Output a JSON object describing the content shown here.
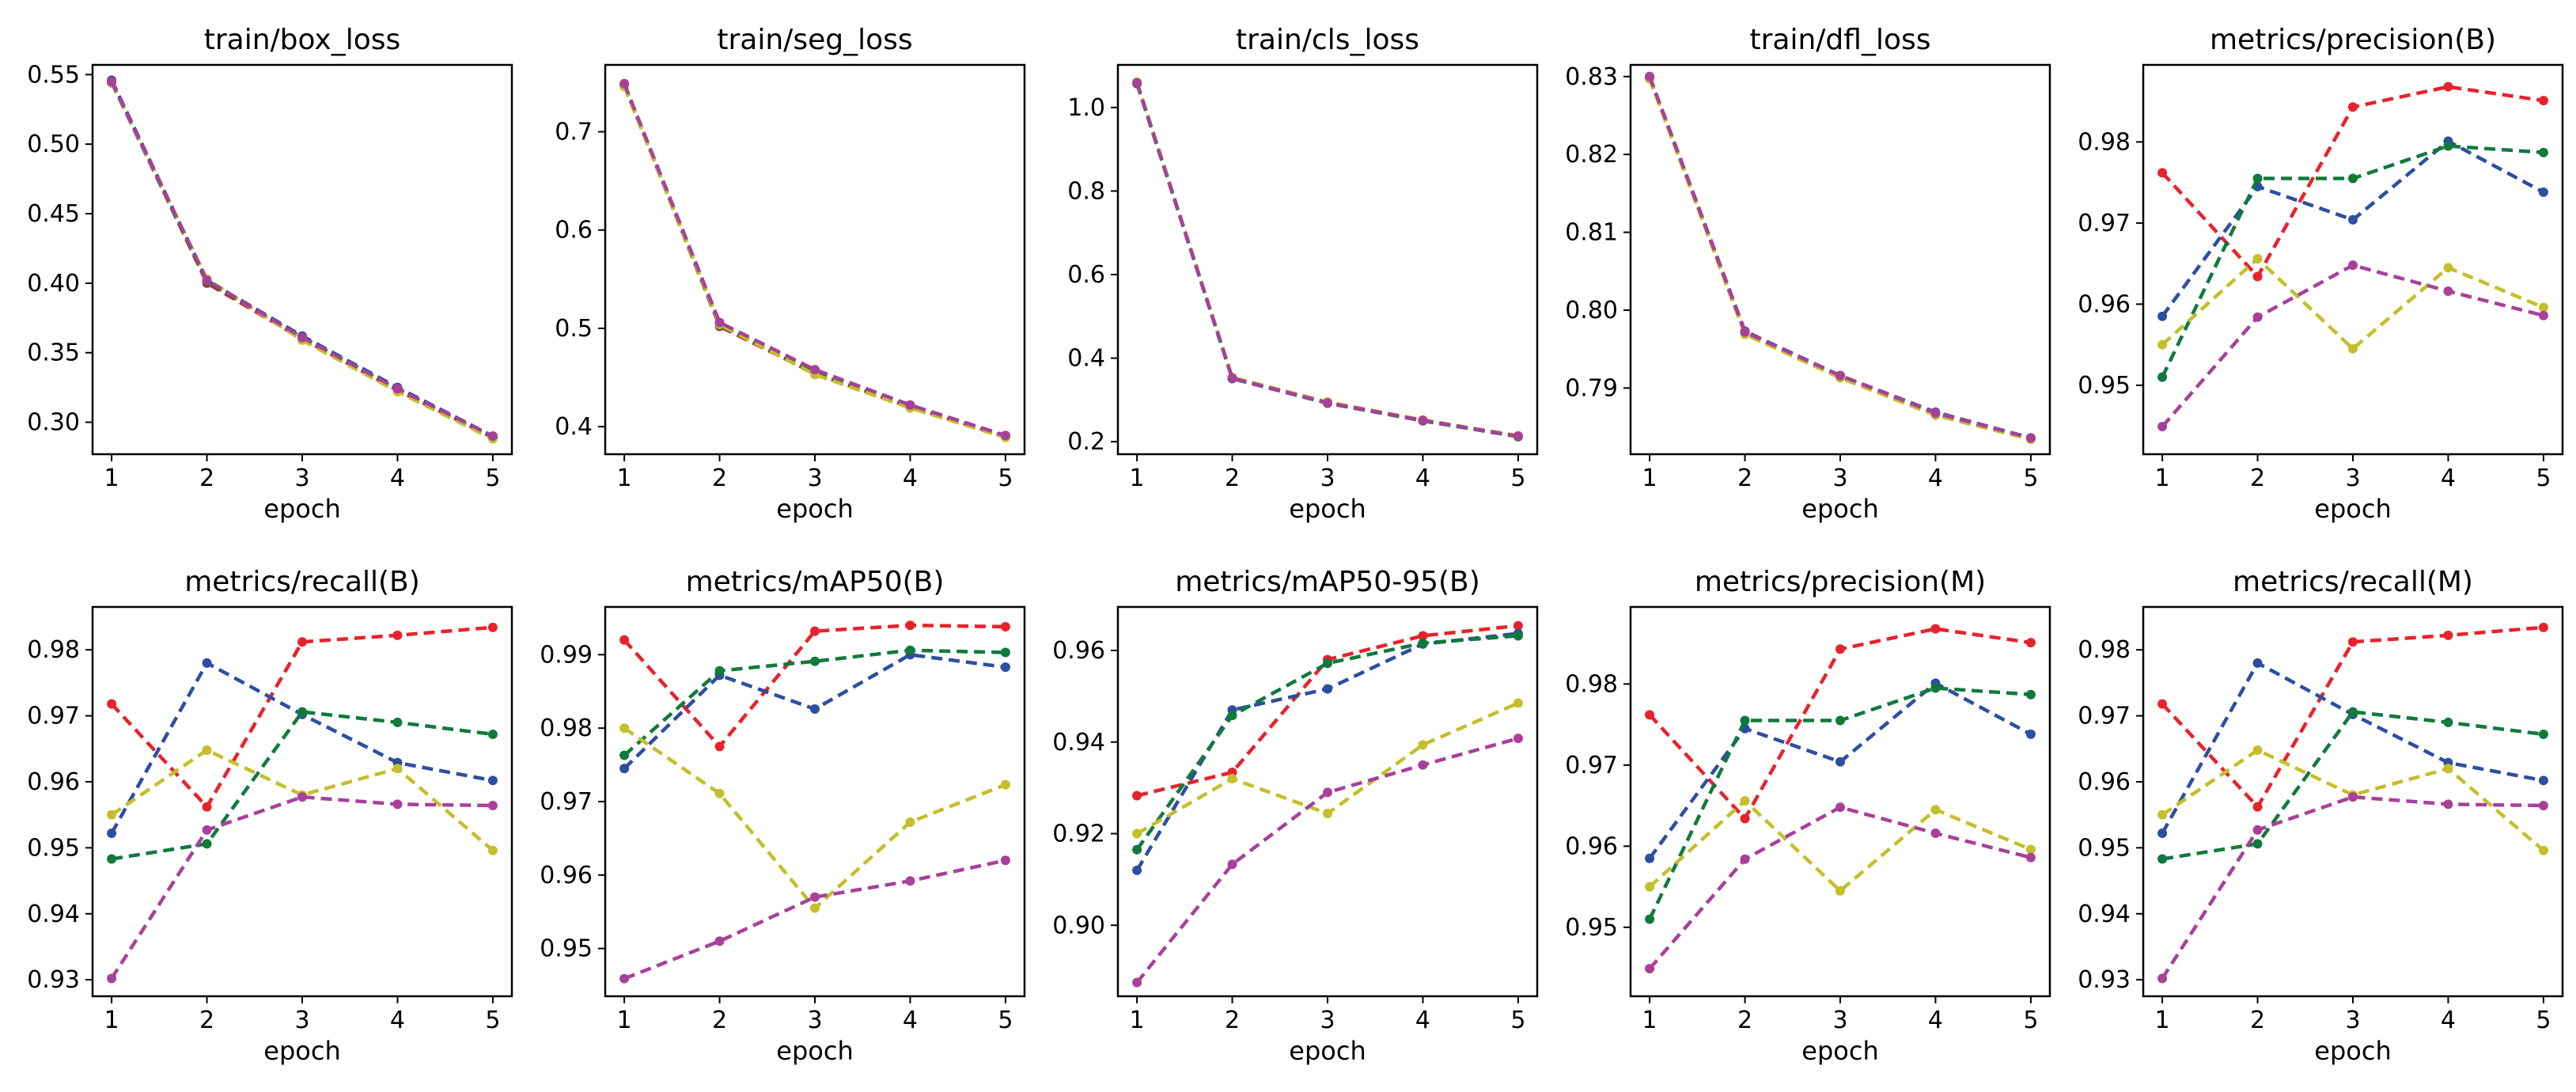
{
  "chart_data": [
    {
      "type": "line",
      "title": "train/box_loss",
      "xlabel": "epoch",
      "x": [
        1,
        2,
        3,
        4,
        5
      ],
      "ylim": [
        0.277,
        0.557
      ],
      "yticks": [
        0.3,
        0.35,
        0.4,
        0.45,
        0.5,
        0.55
      ],
      "ytick_labels": [
        "0.30",
        "0.35",
        "0.40",
        "0.45",
        "0.50",
        "0.55"
      ],
      "series": [
        {
          "name": "run-red",
          "color": "#e8222b",
          "values": [
            0.545,
            0.4,
            0.36,
            0.323,
            0.289
          ]
        },
        {
          "name": "run-blue",
          "color": "#2d4ea1",
          "values": [
            0.546,
            0.402,
            0.362,
            0.325,
            0.29
          ]
        },
        {
          "name": "run-green",
          "color": "#0f7a3c",
          "values": [
            0.544,
            0.401,
            0.361,
            0.324,
            0.289
          ]
        },
        {
          "name": "run-yellow",
          "color": "#c4bf2a",
          "values": [
            0.544,
            0.403,
            0.359,
            0.322,
            0.288
          ]
        },
        {
          "name": "run-purple",
          "color": "#a8409a",
          "values": [
            0.545,
            0.402,
            0.361,
            0.324,
            0.29
          ]
        }
      ]
    },
    {
      "type": "line",
      "title": "train/seg_loss",
      "xlabel": "epoch",
      "x": [
        1,
        2,
        3,
        4,
        5
      ],
      "ylim": [
        0.372,
        0.768
      ],
      "yticks": [
        0.4,
        0.5,
        0.6,
        0.7
      ],
      "ytick_labels": [
        "0.4",
        "0.5",
        "0.6",
        "0.7"
      ],
      "series": [
        {
          "name": "run-red",
          "color": "#e8222b",
          "values": [
            0.747,
            0.502,
            0.454,
            0.42,
            0.39
          ]
        },
        {
          "name": "run-blue",
          "color": "#2d4ea1",
          "values": [
            0.748,
            0.505,
            0.457,
            0.422,
            0.391
          ]
        },
        {
          "name": "run-green",
          "color": "#0f7a3c",
          "values": [
            0.747,
            0.503,
            0.455,
            0.421,
            0.39
          ]
        },
        {
          "name": "run-yellow",
          "color": "#c4bf2a",
          "values": [
            0.746,
            0.504,
            0.453,
            0.419,
            0.389
          ]
        },
        {
          "name": "run-purple",
          "color": "#a8409a",
          "values": [
            0.749,
            0.506,
            0.458,
            0.422,
            0.391
          ]
        }
      ]
    },
    {
      "type": "line",
      "title": "train/cls_loss",
      "xlabel": "epoch",
      "x": [
        1,
        2,
        3,
        4,
        5
      ],
      "ylim": [
        0.17,
        1.102
      ],
      "yticks": [
        0.2,
        0.4,
        0.6,
        0.8,
        1.0
      ],
      "ytick_labels": [
        "0.2",
        "0.4",
        "0.6",
        "0.8",
        "1.0"
      ],
      "series": [
        {
          "name": "run-red",
          "color": "#e8222b",
          "values": [
            1.058,
            0.352,
            0.293,
            0.25,
            0.213
          ]
        },
        {
          "name": "run-blue",
          "color": "#2d4ea1",
          "values": [
            1.06,
            0.353,
            0.294,
            0.251,
            0.214
          ]
        },
        {
          "name": "run-green",
          "color": "#0f7a3c",
          "values": [
            1.057,
            0.351,
            0.292,
            0.25,
            0.212
          ]
        },
        {
          "name": "run-yellow",
          "color": "#c4bf2a",
          "values": [
            1.061,
            0.354,
            0.295,
            0.252,
            0.214
          ]
        },
        {
          "name": "run-purple",
          "color": "#a8409a",
          "values": [
            1.059,
            0.352,
            0.293,
            0.251,
            0.213
          ]
        }
      ]
    },
    {
      "type": "line",
      "title": "train/dfl_loss",
      "xlabel": "epoch",
      "x": [
        1,
        2,
        3,
        4,
        5
      ],
      "ylim": [
        0.7815,
        0.8315
      ],
      "yticks": [
        0.79,
        0.8,
        0.81,
        0.82,
        0.83
      ],
      "ytick_labels": [
        "0.79",
        "0.80",
        "0.81",
        "0.82",
        "0.83"
      ],
      "series": [
        {
          "name": "run-red",
          "color": "#e8222b",
          "values": [
            0.8298,
            0.797,
            0.7914,
            0.7866,
            0.7835
          ]
        },
        {
          "name": "run-blue",
          "color": "#2d4ea1",
          "values": [
            0.83,
            0.7973,
            0.7916,
            0.7869,
            0.7836
          ]
        },
        {
          "name": "run-green",
          "color": "#0f7a3c",
          "values": [
            0.8299,
            0.7971,
            0.7915,
            0.7867,
            0.7835
          ]
        },
        {
          "name": "run-yellow",
          "color": "#c4bf2a",
          "values": [
            0.8297,
            0.7969,
            0.7913,
            0.7865,
            0.7834
          ]
        },
        {
          "name": "run-purple",
          "color": "#a8409a",
          "values": [
            0.83,
            0.7972,
            0.7916,
            0.7868,
            0.7836
          ]
        }
      ]
    },
    {
      "type": "line",
      "title": "metrics/precision(B)",
      "xlabel": "epoch",
      "x": [
        1,
        2,
        3,
        4,
        5
      ],
      "ylim": [
        0.9415,
        0.9895
      ],
      "yticks": [
        0.95,
        0.96,
        0.97,
        0.98
      ],
      "ytick_labels": [
        "0.95",
        "0.96",
        "0.97",
        "0.98"
      ],
      "series": [
        {
          "name": "run-red",
          "color": "#e8222b",
          "values": [
            0.9762,
            0.9634,
            0.9843,
            0.9868,
            0.9851
          ]
        },
        {
          "name": "run-blue",
          "color": "#2d4ea1",
          "values": [
            0.9585,
            0.9745,
            0.9704,
            0.9801,
            0.9738
          ]
        },
        {
          "name": "run-green",
          "color": "#0f7a3c",
          "values": [
            0.951,
            0.9755,
            0.9755,
            0.9795,
            0.9787
          ]
        },
        {
          "name": "run-yellow",
          "color": "#c4bf2a",
          "values": [
            0.955,
            0.9656,
            0.9545,
            0.9645,
            0.9596
          ]
        },
        {
          "name": "run-purple",
          "color": "#a8409a",
          "values": [
            0.9449,
            0.9584,
            0.9648,
            0.9616,
            0.9586
          ]
        }
      ]
    },
    {
      "type": "line",
      "title": "metrics/recall(B)",
      "xlabel": "epoch",
      "x": [
        1,
        2,
        3,
        4,
        5
      ],
      "ylim": [
        0.9275,
        0.9865
      ],
      "yticks": [
        0.93,
        0.94,
        0.95,
        0.96,
        0.97,
        0.98
      ],
      "ytick_labels": [
        "0.93",
        "0.94",
        "0.95",
        "0.96",
        "0.97",
        "0.98"
      ],
      "series": [
        {
          "name": "run-red",
          "color": "#e8222b",
          "values": [
            0.9718,
            0.9562,
            0.9812,
            0.9822,
            0.9834
          ]
        },
        {
          "name": "run-blue",
          "color": "#2d4ea1",
          "values": [
            0.9522,
            0.978,
            0.9702,
            0.9629,
            0.9602
          ]
        },
        {
          "name": "run-green",
          "color": "#0f7a3c",
          "values": [
            0.9483,
            0.9506,
            0.9706,
            0.969,
            0.9672
          ]
        },
        {
          "name": "run-yellow",
          "color": "#c4bf2a",
          "values": [
            0.955,
            0.9648,
            0.958,
            0.962,
            0.9496
          ]
        },
        {
          "name": "run-purple",
          "color": "#a8409a",
          "values": [
            0.9302,
            0.9527,
            0.9577,
            0.9566,
            0.9564
          ]
        }
      ]
    },
    {
      "type": "line",
      "title": "metrics/mAP50(B)",
      "xlabel": "epoch",
      "x": [
        1,
        2,
        3,
        4,
        5
      ],
      "ylim": [
        0.9435,
        0.9965
      ],
      "yticks": [
        0.95,
        0.96,
        0.97,
        0.98,
        0.99
      ],
      "ytick_labels": [
        "0.95",
        "0.96",
        "0.97",
        "0.98",
        "0.99"
      ],
      "series": [
        {
          "name": "run-red",
          "color": "#e8222b",
          "values": [
            0.992,
            0.9775,
            0.9932,
            0.994,
            0.9938
          ]
        },
        {
          "name": "run-blue",
          "color": "#2d4ea1",
          "values": [
            0.9745,
            0.9872,
            0.9826,
            0.99,
            0.9883
          ]
        },
        {
          "name": "run-green",
          "color": "#0f7a3c",
          "values": [
            0.9763,
            0.9878,
            0.9891,
            0.9906,
            0.9903
          ]
        },
        {
          "name": "run-yellow",
          "color": "#c4bf2a",
          "values": [
            0.98,
            0.9711,
            0.9555,
            0.9672,
            0.9723
          ]
        },
        {
          "name": "run-purple",
          "color": "#a8409a",
          "values": [
            0.9459,
            0.951,
            0.957,
            0.9592,
            0.962
          ]
        }
      ]
    },
    {
      "type": "line",
      "title": "metrics/mAP50-95(B)",
      "xlabel": "epoch",
      "x": [
        1,
        2,
        3,
        4,
        5
      ],
      "ylim": [
        0.8845,
        0.9695
      ],
      "yticks": [
        0.9,
        0.92,
        0.94,
        0.96
      ],
      "ytick_labels": [
        "0.90",
        "0.92",
        "0.94",
        "0.96"
      ],
      "series": [
        {
          "name": "run-red",
          "color": "#e8222b",
          "values": [
            0.9283,
            0.9334,
            0.958,
            0.9632,
            0.9654
          ]
        },
        {
          "name": "run-blue",
          "color": "#2d4ea1",
          "values": [
            0.912,
            0.947,
            0.9516,
            0.9614,
            0.9637
          ]
        },
        {
          "name": "run-green",
          "color": "#0f7a3c",
          "values": [
            0.9165,
            0.9458,
            0.9572,
            0.9616,
            0.9632
          ]
        },
        {
          "name": "run-yellow",
          "color": "#c4bf2a",
          "values": [
            0.92,
            0.932,
            0.9244,
            0.9394,
            0.9485
          ]
        },
        {
          "name": "run-purple",
          "color": "#a8409a",
          "values": [
            0.8875,
            0.9133,
            0.929,
            0.935,
            0.9408
          ]
        }
      ]
    },
    {
      "type": "line",
      "title": "metrics/precision(M)",
      "xlabel": "epoch",
      "x": [
        1,
        2,
        3,
        4,
        5
      ],
      "ylim": [
        0.9415,
        0.9895
      ],
      "yticks": [
        0.95,
        0.96,
        0.97,
        0.98
      ],
      "ytick_labels": [
        "0.95",
        "0.96",
        "0.97",
        "0.98"
      ],
      "series": [
        {
          "name": "run-red",
          "color": "#e8222b",
          "values": [
            0.9762,
            0.9634,
            0.9843,
            0.9868,
            0.9851
          ]
        },
        {
          "name": "run-blue",
          "color": "#2d4ea1",
          "values": [
            0.9585,
            0.9745,
            0.9704,
            0.9801,
            0.9738
          ]
        },
        {
          "name": "run-green",
          "color": "#0f7a3c",
          "values": [
            0.951,
            0.9755,
            0.9755,
            0.9795,
            0.9787
          ]
        },
        {
          "name": "run-yellow",
          "color": "#c4bf2a",
          "values": [
            0.955,
            0.9656,
            0.9545,
            0.9645,
            0.9596
          ]
        },
        {
          "name": "run-purple",
          "color": "#a8409a",
          "values": [
            0.9449,
            0.9584,
            0.9648,
            0.9616,
            0.9586
          ]
        }
      ]
    },
    {
      "type": "line",
      "title": "metrics/recall(M)",
      "xlabel": "epoch",
      "x": [
        1,
        2,
        3,
        4,
        5
      ],
      "ylim": [
        0.9275,
        0.9865
      ],
      "yticks": [
        0.93,
        0.94,
        0.95,
        0.96,
        0.97,
        0.98
      ],
      "ytick_labels": [
        "0.93",
        "0.94",
        "0.95",
        "0.96",
        "0.97",
        "0.98"
      ],
      "series": [
        {
          "name": "run-red",
          "color": "#e8222b",
          "values": [
            0.9718,
            0.9562,
            0.9812,
            0.9822,
            0.9834
          ]
        },
        {
          "name": "run-blue",
          "color": "#2d4ea1",
          "values": [
            0.9522,
            0.978,
            0.9702,
            0.9629,
            0.9602
          ]
        },
        {
          "name": "run-green",
          "color": "#0f7a3c",
          "values": [
            0.9483,
            0.9506,
            0.9706,
            0.969,
            0.9672
          ]
        },
        {
          "name": "run-yellow",
          "color": "#c4bf2a",
          "values": [
            0.955,
            0.9648,
            0.958,
            0.962,
            0.9496
          ]
        },
        {
          "name": "run-purple",
          "color": "#a8409a",
          "values": [
            0.9302,
            0.9527,
            0.9577,
            0.9566,
            0.9564
          ]
        }
      ]
    }
  ]
}
